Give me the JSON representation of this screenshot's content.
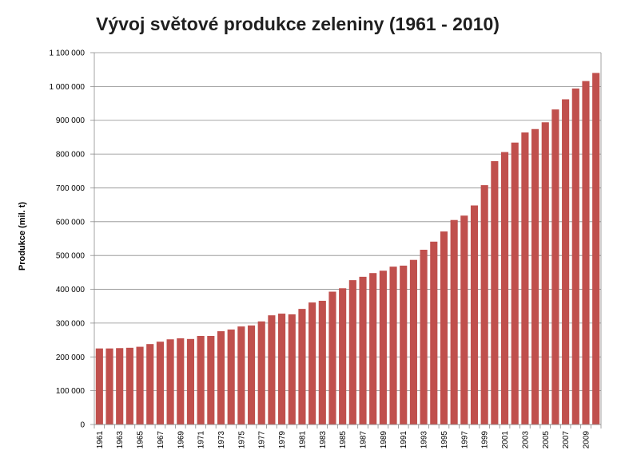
{
  "chart_data": {
    "type": "bar",
    "title": "Vývoj světové produkce zeleniny (1961 - 2010)",
    "xlabel": "",
    "ylabel": "Produkce (mil. t)",
    "ylim": [
      0,
      1100000
    ],
    "y_ticks": [
      "0",
      "100 000",
      "200 000",
      "300 000",
      "400 000",
      "500 000",
      "600 000",
      "700 000",
      "800 000",
      "900 000",
      "1 000 000",
      "1 100 000"
    ],
    "y_tick_values": [
      0,
      100000,
      200000,
      300000,
      400000,
      500000,
      600000,
      700000,
      800000,
      900000,
      1000000,
      1100000
    ],
    "x_tick_labels": [
      "1961",
      "1963",
      "1965",
      "1967",
      "1969",
      "1971",
      "1973",
      "1975",
      "1977",
      "1979",
      "1981",
      "1983",
      "1985",
      "1987",
      "1989",
      "1991",
      "1993",
      "1995",
      "1997",
      "1999",
      "2001",
      "2003",
      "2005",
      "2007",
      "2009"
    ],
    "grid": true,
    "legend": "none",
    "bar_color": "#c0504d",
    "categories": [
      "1961",
      "1962",
      "1963",
      "1964",
      "1965",
      "1966",
      "1967",
      "1968",
      "1969",
      "1970",
      "1971",
      "1972",
      "1973",
      "1974",
      "1975",
      "1976",
      "1977",
      "1978",
      "1979",
      "1980",
      "1981",
      "1982",
      "1983",
      "1984",
      "1985",
      "1986",
      "1987",
      "1988",
      "1989",
      "1990",
      "1991",
      "1992",
      "1993",
      "1994",
      "1995",
      "1996",
      "1997",
      "1998",
      "1999",
      "2000",
      "2001",
      "2002",
      "2003",
      "2004",
      "2005",
      "2006",
      "2007",
      "2008",
      "2009",
      "2010"
    ],
    "values": [
      225000,
      225000,
      226000,
      227000,
      230000,
      238000,
      245000,
      252000,
      255000,
      253000,
      262000,
      262000,
      276000,
      281000,
      290000,
      293000,
      305000,
      323000,
      328000,
      326000,
      342000,
      361000,
      366000,
      393000,
      403000,
      427000,
      437000,
      448000,
      455000,
      467000,
      470000,
      487000,
      517000,
      541000,
      571000,
      605000,
      618000,
      648000,
      708000,
      779000,
      806000,
      834000,
      864000,
      874000,
      894000,
      932000,
      962000,
      994000,
      1016000,
      1040000
    ]
  }
}
